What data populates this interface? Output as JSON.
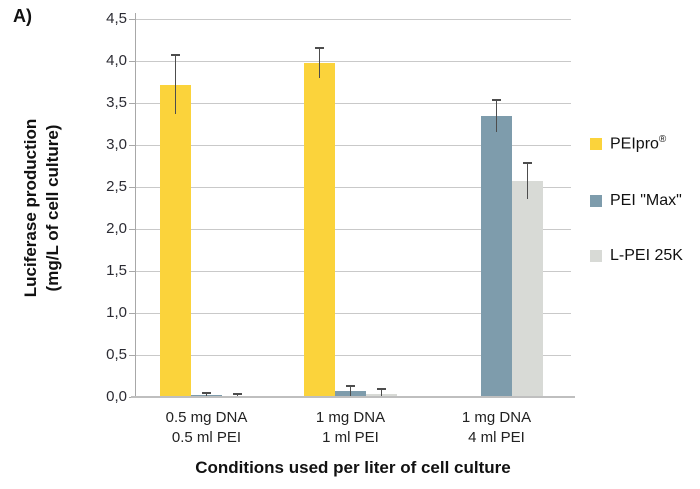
{
  "panel_label": "A)",
  "chart_data": {
    "type": "bar",
    "title": "",
    "xlabel": "Conditions used per liter of cell culture",
    "ylabel_line1": "Luciferase production",
    "ylabel_line2": "(mg/L of cell culture)",
    "categories": [
      {
        "line1": "0.5 mg DNA",
        "line2": "0.5 ml PEI"
      },
      {
        "line1": "1 mg DNA",
        "line2": "1 ml PEI"
      },
      {
        "line1": "1 mg DNA",
        "line2": "4 ml PEI"
      }
    ],
    "series": [
      {
        "name": "PEIpro®",
        "color": "#FBD33B",
        "values": [
          3.72,
          3.98,
          null
        ],
        "errors": [
          0.35,
          0.18,
          null
        ]
      },
      {
        "name": "PEI \"Max\"",
        "color": "#7E9CAC",
        "values": [
          0.02,
          0.07,
          3.35
        ],
        "errors": [
          0.03,
          0.06,
          0.19
        ]
      },
      {
        "name": "L-PEI 25K",
        "color": "#D8DAD6",
        "values": [
          0.01,
          0.04,
          2.57
        ],
        "errors": [
          0.02,
          0.05,
          0.21
        ]
      }
    ],
    "ylim": [
      0,
      4.5
    ],
    "ytick_step": 0.5,
    "ytick_labels": [
      "0,0",
      "0,5",
      "1,0",
      "1,5",
      "2,0",
      "2,5",
      "3,0",
      "3,5",
      "4,0",
      "4,5"
    ],
    "grid": true,
    "legend_position": "right",
    "colors": {
      "gridline": "#c9c9c9",
      "axis": "#a8a8a8",
      "error_bar": "#4d4d4d",
      "text": "#111111"
    }
  }
}
